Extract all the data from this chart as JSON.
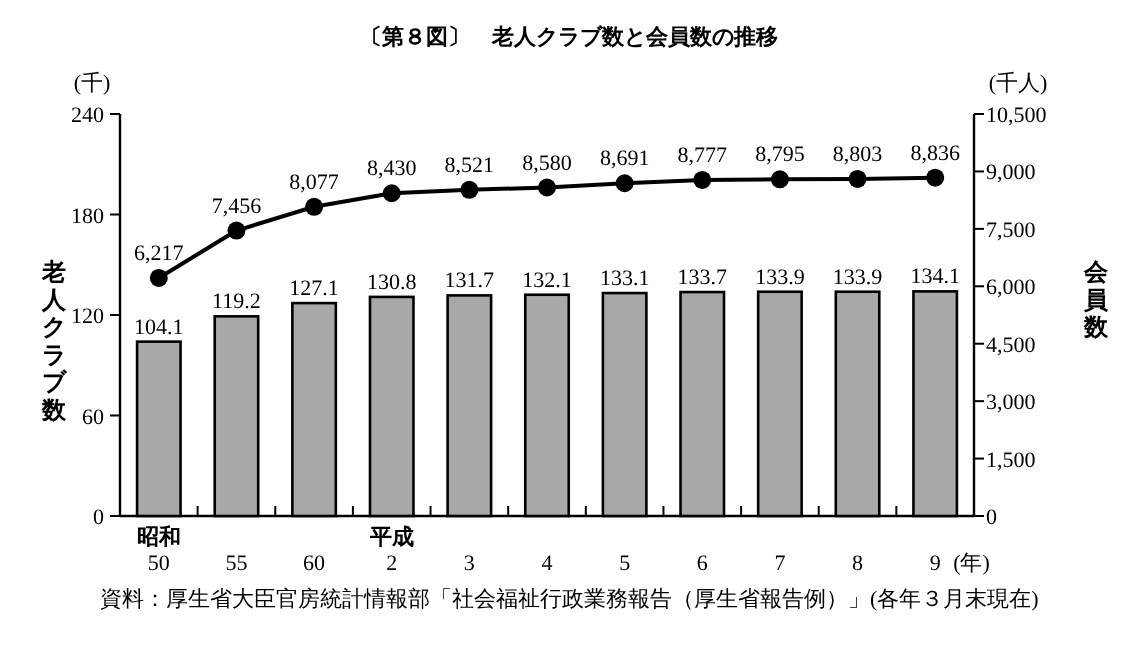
{
  "chart_data": {
    "type": "bar",
    "title": "〔第８図〕　老人クラブ数と会員数の推移",
    "categories": [
      "昭和\n50",
      "55",
      "60",
      "平成\n2",
      "3",
      "4",
      "5",
      "6",
      "7",
      "8",
      "9"
    ],
    "series": [
      {
        "color": "#a8a8a8",
        "values": [
          104.1,
          119.2,
          127.1,
          130.8,
          131.7,
          132.1,
          133.1,
          133.7,
          133.9,
          133.9,
          134.1
        ],
        "value_labels": [
          "104.1",
          "119.2",
          "127.1",
          "130.8",
          "131.7",
          "132.1",
          "133.1",
          "133.7",
          "133.9",
          "133.9",
          "134.1"
        ]
      },
      {
        "type": "line",
        "axis": "y2",
        "color": "#000000",
        "marker": "circle",
        "values": [
          6217,
          7456,
          8077,
          8430,
          8521,
          8580,
          8691,
          8777,
          8795,
          8803,
          8836
        ],
        "value_labels": [
          "6,217",
          "7,456",
          "8,077",
          "8,430",
          "8,521",
          "8,580",
          "8,691",
          "8,777",
          "8,795",
          "8,803",
          "8,836"
        ]
      }
    ],
    "ylim": [
      0,
      240
    ],
    "yticks": [
      0,
      60,
      120,
      180,
      240
    ],
    "y2lim": [
      0,
      10500
    ],
    "y2ticks": [
      0,
      {
        "value": 1500,
        "label": "1,500"
      },
      {
        "value": 3000,
        "label": "3,000"
      },
      {
        "value": 4500,
        "label": "4,500"
      },
      {
        "value": 6000,
        "label": "6,000"
      },
      {
        "value": 7500,
        "label": "7,500"
      },
      {
        "value": 9000,
        "label": "9,000"
      },
      {
        "value": 10500,
        "label": "10,500"
      }
    ],
    "xlabel": "(年)",
    "ylabel": "老人クラブ数",
    "y2label": "会員数",
    "annotations": [
      "(千)",
      "(千人)",
      "資料：厚生省大臣官房統計情報部「社会福祉行政業務報告（厚生省報告例）」(各年３月末現在)"
    ]
  }
}
